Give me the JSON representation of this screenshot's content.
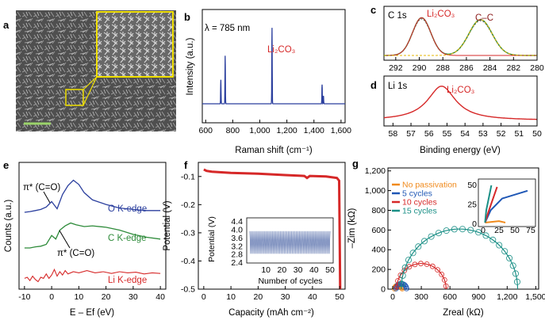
{
  "figure": {
    "panels": [
      {
        "id": "a",
        "label": "a"
      },
      {
        "id": "b",
        "label": "b",
        "annotation": "λ = 785 nm",
        "peak_label": "Li₂CO₃"
      },
      {
        "id": "c",
        "label": "c",
        "title": "C 1s",
        "peak_labels": [
          "Li₂CO₃",
          "C–C"
        ]
      },
      {
        "id": "d",
        "label": "d",
        "title": "Li 1s",
        "peak_label": "Li₂CO₃"
      },
      {
        "id": "e",
        "label": "e",
        "curve_labels": [
          "O K-edge",
          "C K-edge",
          "Li K-edge"
        ],
        "annotations": [
          "π* (C=O)",
          "π* (C=O)"
        ]
      },
      {
        "id": "f",
        "label": "f"
      },
      {
        "id": "g",
        "label": "g"
      }
    ],
    "colors": {
      "blue": "#2b3f9e",
      "red": "#d62828",
      "green": "#2e8b3a",
      "orange": "#f08a1c",
      "navy": "#1f57b5",
      "teal": "#1a8f86",
      "yellow": "#f0e000"
    }
  },
  "chart_data": [
    {
      "type": "line",
      "panel": "b",
      "xlabel": "Raman shift (cm⁻¹)",
      "ylabel": "Intensity (a.u.)",
      "xticks": [
        "600",
        "800",
        "1,000",
        "1,200",
        "1,400",
        "1,600"
      ],
      "xlim": [
        575,
        1630
      ],
      "peaks": [
        {
          "x": 712,
          "h": 0.3
        },
        {
          "x": 744,
          "h": 0.6
        },
        {
          "x": 1090,
          "h": 0.95
        },
        {
          "x": 1460,
          "h": 0.24
        },
        {
          "x": 1470,
          "h": 0.1
        }
      ]
    },
    {
      "type": "line",
      "panel": "c",
      "xticks": [
        "292",
        "290",
        "288",
        "286",
        "284",
        "282",
        "280"
      ],
      "xlim": [
        293,
        280
      ],
      "peaks": [
        {
          "x": 289.8,
          "h": 0.82,
          "w": 1.1
        },
        {
          "x": 284.8,
          "h": 0.78,
          "w": 1.4
        }
      ]
    },
    {
      "type": "line",
      "panel": "d",
      "xlabel": "Binding energy (eV)",
      "xticks": [
        "58",
        "57",
        "56",
        "55",
        "54",
        "53",
        "52",
        "51",
        "50"
      ],
      "xlim": [
        58.5,
        50
      ],
      "peaks": [
        {
          "x": 55.3,
          "h": 0.9,
          "w": 0.95
        }
      ]
    },
    {
      "type": "line",
      "panel": "e",
      "xlabel": "E – Ef (eV)",
      "ylabel": "Counts (a.u.)",
      "xticks": [
        "-10",
        "0",
        "10",
        "20",
        "30",
        "40"
      ],
      "xlim": [
        -12,
        42
      ],
      "series": [
        {
          "name": "O K-edge",
          "points": [
            [
              -10,
              0
            ],
            [
              -8,
              0.02
            ],
            [
              -6,
              0.05
            ],
            [
              -4,
              0.08
            ],
            [
              -2,
              0.15
            ],
            [
              0,
              0.3
            ],
            [
              2,
              0.1
            ],
            [
              4,
              0.5
            ],
            [
              6,
              0.75
            ],
            [
              8,
              0.9
            ],
            [
              10,
              0.78
            ],
            [
              12,
              0.55
            ],
            [
              15,
              0.35
            ],
            [
              20,
              0.22
            ],
            [
              25,
              0.12
            ],
            [
              30,
              0.08
            ],
            [
              35,
              0.05
            ],
            [
              40,
              0.05
            ]
          ]
        },
        {
          "name": "C K-edge",
          "points": [
            [
              -10,
              0
            ],
            [
              -8,
              0
            ],
            [
              -6,
              0.03
            ],
            [
              -4,
              0.05
            ],
            [
              -2,
              0.1
            ],
            [
              0,
              0.35
            ],
            [
              1.5,
              0.25
            ],
            [
              3,
              0.5
            ],
            [
              5,
              0.62
            ],
            [
              7,
              0.7
            ],
            [
              9,
              0.65
            ],
            [
              12,
              0.6
            ],
            [
              15,
              0.62
            ],
            [
              20,
              0.58
            ],
            [
              25,
              0.5
            ],
            [
              30,
              0.38
            ],
            [
              35,
              0.3
            ],
            [
              40,
              0.25
            ]
          ]
        },
        {
          "name": "Li K-edge",
          "points": [
            [
              -10,
              0.2
            ],
            [
              -9,
              0.25
            ],
            [
              -8,
              0.1
            ],
            [
              -7,
              0.3
            ],
            [
              -6,
              0.15
            ],
            [
              -5,
              0.05
            ],
            [
              -4,
              0.25
            ],
            [
              -3,
              0.2
            ],
            [
              -2,
              0.4
            ],
            [
              -1,
              0.2
            ],
            [
              0,
              0.35
            ],
            [
              1,
              0.6
            ],
            [
              2,
              0.3
            ],
            [
              3,
              0.5
            ],
            [
              4,
              0.35
            ],
            [
              5,
              0.55
            ],
            [
              6,
              0.4
            ],
            [
              8,
              0.5
            ],
            [
              10,
              0.45
            ],
            [
              13,
              0.55
            ],
            [
              16,
              0.45
            ],
            [
              19,
              0.5
            ],
            [
              22,
              0.42
            ],
            [
              25,
              0.5
            ],
            [
              28,
              0.45
            ],
            [
              31,
              0.48
            ],
            [
              34,
              0.4
            ],
            [
              37,
              0.45
            ],
            [
              40,
              0.42
            ]
          ]
        }
      ]
    },
    {
      "type": "line",
      "panel": "f",
      "xlabel": "Capacity (mAh cm⁻²)",
      "ylabel": "Potential (V)",
      "xticks": [
        "0",
        "10",
        "20",
        "30",
        "40",
        "50"
      ],
      "xlim": [
        -2,
        52
      ],
      "yticks": [
        "-0.1",
        "-0.2",
        "-0.3",
        "-0.4",
        "-0.5"
      ],
      "ylim": [
        -0.5,
        -0.05
      ],
      "points": [
        [
          0,
          -0.075
        ],
        [
          1,
          -0.08
        ],
        [
          3,
          -0.083
        ],
        [
          10,
          -0.087
        ],
        [
          20,
          -0.09
        ],
        [
          30,
          -0.095
        ],
        [
          37,
          -0.098
        ],
        [
          38,
          -0.105
        ],
        [
          39,
          -0.098
        ],
        [
          45,
          -0.1
        ],
        [
          49,
          -0.105
        ],
        [
          49.8,
          -0.115
        ],
        [
          50.2,
          -0.5
        ]
      ],
      "inset": {
        "xlabel": "Number of cycles",
        "ylabel": "Potential (V)",
        "xticks": [
          "10",
          "20",
          "30",
          "40",
          "50"
        ],
        "yticks": [
          "2.4",
          "2.8",
          "3.2",
          "3.6",
          "4.0",
          "4.4"
        ],
        "cycles": 50,
        "ymin": 2.85,
        "ymax": 3.95
      }
    },
    {
      "type": "scatter",
      "panel": "g",
      "xlabel": "Zreal (kΩ)",
      "ylabel": "–Zim (kΩ)",
      "xticks": [
        "0",
        "300",
        "600",
        "900",
        "1,200",
        "1,500"
      ],
      "xlim": [
        -50,
        1530
      ],
      "yticks": [
        "0",
        "200",
        "400",
        "600",
        "800",
        "1,000",
        "1,200"
      ],
      "ylim": [
        0,
        1230
      ],
      "series": [
        {
          "name": "No passivation",
          "center": 60,
          "radius": 40
        },
        {
          "name": "5 cycles",
          "center": 90,
          "radius": 55
        },
        {
          "name": "10 cycles",
          "center": 300,
          "radius": 260
        },
        {
          "name": "15 cycles",
          "center": 700,
          "radius": 610
        }
      ],
      "inset": {
        "xticks": [
          "0",
          "25",
          "50",
          "75"
        ],
        "yticks": [
          "0",
          "25",
          "50"
        ]
      }
    }
  ]
}
